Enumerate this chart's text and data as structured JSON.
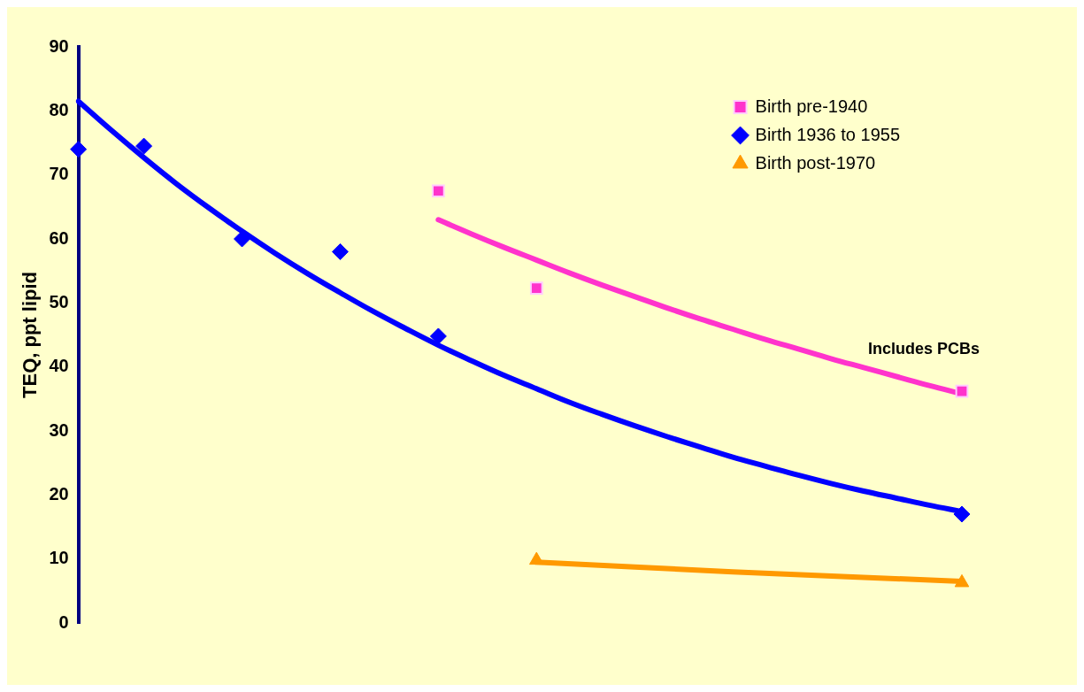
{
  "chart_data": {
    "type": "scatter",
    "ylabel": "TEQ, ppt lipid",
    "categories": [
      null,
      null,
      null,
      null,
      null,
      null,
      null,
      null,
      null,
      null,
      null,
      null,
      null,
      null,
      null,
      null,
      null,
      null,
      null,
      null,
      null,
      null,
      null,
      null,
      null,
      null,
      null,
      null
    ],
    "ylim": [
      0,
      90
    ],
    "yticks": [
      0,
      10,
      20,
      30,
      40,
      50,
      60,
      70,
      80,
      90
    ],
    "grid": false,
    "legend": "top right",
    "tick_labels": "y",
    "annotations": [
      "Includes PCBs"
    ],
    "series": [
      {
        "name": "Birth pre-1940",
        "color": "#ff33cc",
        "marker": "square",
        "values": [
          null,
          null,
          null,
          null,
          null,
          null,
          null,
          null,
          null,
          null,
          null,
          67.5,
          null,
          null,
          52.3,
          null,
          null,
          null,
          null,
          null,
          null,
          null,
          null,
          null,
          null,
          null,
          null,
          36.2
        ]
      },
      {
        "name": "Birth 1936 to 1955",
        "color": "#0000ff",
        "marker": "diamond",
        "values": [
          74,
          null,
          74.5,
          null,
          null,
          60,
          null,
          null,
          58,
          null,
          null,
          44.8,
          null,
          null,
          null,
          null,
          null,
          null,
          null,
          null,
          null,
          null,
          null,
          null,
          null,
          null,
          null,
          17
        ]
      },
      {
        "name": "Birth post-1970",
        "color": "#ff9900",
        "marker": "triangle",
        "values": [
          null,
          null,
          null,
          null,
          null,
          null,
          null,
          null,
          null,
          null,
          null,
          null,
          null,
          null,
          9.8,
          null,
          null,
          null,
          null,
          null,
          null,
          null,
          null,
          null,
          null,
          null,
          null,
          6.3
        ]
      },
      {
        "type": "line",
        "color": "#ff33cc",
        "marker": "none",
        "values": [
          null,
          null,
          null,
          null,
          null,
          null,
          null,
          null,
          null,
          null,
          null,
          63.0,
          60.8,
          58.7,
          56.7,
          54.7,
          52.8,
          51.0,
          49.2,
          47.5,
          45.9,
          44.3,
          42.8,
          41.3,
          39.9,
          38.5,
          37.1,
          35.8
        ]
      },
      {
        "type": "line",
        "color": "#0000ff",
        "marker": "none",
        "values": [
          81.5,
          77.0,
          72.7,
          68.6,
          64.8,
          61.2,
          57.8,
          54.6,
          51.6,
          48.7,
          46.0,
          43.4,
          41.0,
          38.7,
          36.6,
          34.5,
          32.6,
          30.8,
          29.1,
          27.5,
          25.9,
          24.5,
          23.1,
          21.8,
          20.6,
          19.5,
          18.4,
          17.4
        ]
      },
      {
        "type": "line",
        "color": "#ff9900",
        "marker": "none",
        "values": [
          null,
          null,
          null,
          null,
          null,
          null,
          null,
          null,
          null,
          null,
          null,
          null,
          null,
          null,
          9.5,
          null,
          null,
          null,
          null,
          null,
          8.0,
          null,
          null,
          null,
          null,
          null,
          null,
          6.5
        ]
      }
    ]
  }
}
